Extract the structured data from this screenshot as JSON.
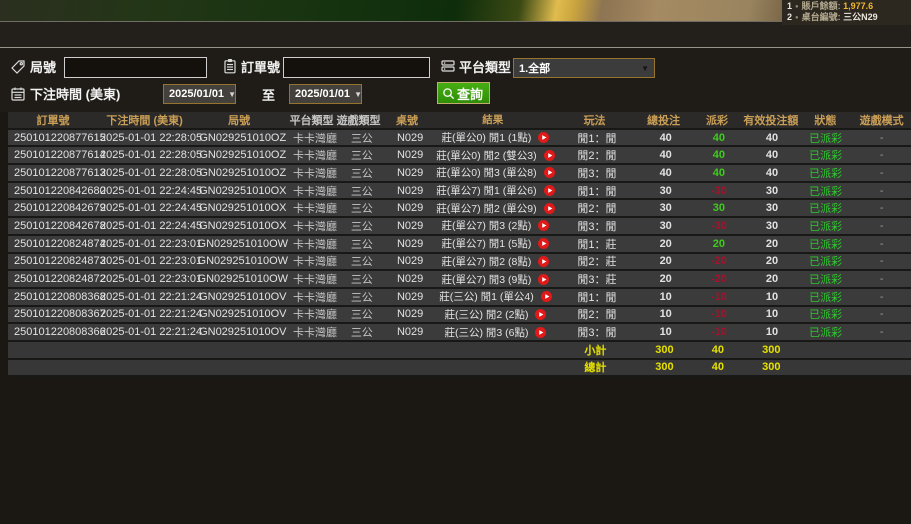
{
  "banner": {
    "lines": [
      {
        "num": "1",
        "label": "賬戶餘額:",
        "value": "1,977.6"
      },
      {
        "num": "2",
        "label": "桌台編號:",
        "value": "三公N29"
      }
    ]
  },
  "filters": {
    "round_label": "局號",
    "order_label": "訂單號",
    "platform_label": "平台類型",
    "platform_value": "1.全部",
    "time_label": "下注時間 (美東)",
    "date_from": "2025/01/01",
    "to_label": "至",
    "date_to": "2025/01/01",
    "search_label": "查詢",
    "round_value": "",
    "order_value": ""
  },
  "table": {
    "headers": [
      "訂單號",
      "下注時間 (美東)",
      "局號",
      "平台類型",
      "遊戲類型",
      "桌號",
      "結果",
      "玩法",
      "總投注",
      "派彩",
      "有效投注額",
      "狀態",
      "遊戲模式"
    ],
    "column_keys": [
      "order-no",
      "bet-time",
      "round-no",
      "platform",
      "game-type",
      "table-no",
      "result",
      "play-type",
      "total-bet",
      "payout",
      "valid-bet",
      "status",
      "game-mode"
    ],
    "rows": [
      [
        "250101220877615",
        "2025-01-01 22:28:05",
        "GN029251010OZ",
        "卡卡灣廳",
        "三公",
        "N029",
        "莊(單公0) 閒1 (1點)",
        "閒1：閒",
        "40",
        "40",
        "40",
        "已派彩",
        "-"
      ],
      [
        "250101220877614",
        "2025-01-01 22:28:05",
        "GN029251010OZ",
        "卡卡灣廳",
        "三公",
        "N029",
        "莊(單公0) 閒2 (雙公3)",
        "閒2：閒",
        "40",
        "40",
        "40",
        "已派彩",
        "-"
      ],
      [
        "250101220877613",
        "2025-01-01 22:28:05",
        "GN029251010OZ",
        "卡卡灣廳",
        "三公",
        "N029",
        "莊(單公0) 閒3 (單公8)",
        "閒3：閒",
        "40",
        "40",
        "40",
        "已派彩",
        "-"
      ],
      [
        "250101220842680",
        "2025-01-01 22:24:45",
        "GN029251010OX",
        "卡卡灣廳",
        "三公",
        "N029",
        "莊(單公7) 閒1 (單公6)",
        "閒1：閒",
        "30",
        "-30",
        "30",
        "已派彩",
        "-"
      ],
      [
        "250101220842679",
        "2025-01-01 22:24:45",
        "GN029251010OX",
        "卡卡灣廳",
        "三公",
        "N029",
        "莊(單公7) 閒2 (單公9)",
        "閒2：閒",
        "30",
        "30",
        "30",
        "已派彩",
        "-"
      ],
      [
        "250101220842678",
        "2025-01-01 22:24:45",
        "GN029251010OX",
        "卡卡灣廳",
        "三公",
        "N029",
        "莊(單公7) 閒3 (2點)",
        "閒3：閒",
        "30",
        "-30",
        "30",
        "已派彩",
        "-"
      ],
      [
        "250101220824874",
        "2025-01-01 22:23:01",
        "GN029251010OW",
        "卡卡灣廳",
        "三公",
        "N029",
        "莊(單公7) 閒1 (5點)",
        "閒1：莊",
        "20",
        "20",
        "20",
        "已派彩",
        "-"
      ],
      [
        "250101220824873",
        "2025-01-01 22:23:01",
        "GN029251010OW",
        "卡卡灣廳",
        "三公",
        "N029",
        "莊(單公7) 閒2 (8點)",
        "閒2：莊",
        "20",
        "-20",
        "20",
        "已派彩",
        "-"
      ],
      [
        "250101220824872",
        "2025-01-01 22:23:01",
        "GN029251010OW",
        "卡卡灣廳",
        "三公",
        "N029",
        "莊(單公7) 閒3 (9點)",
        "閒3：莊",
        "20",
        "-20",
        "20",
        "已派彩",
        "-"
      ],
      [
        "250101220808368",
        "2025-01-01 22:21:24",
        "GN029251010OV",
        "卡卡灣廳",
        "三公",
        "N029",
        "莊(三公) 閒1 (單公4)",
        "閒1：閒",
        "10",
        "-10",
        "10",
        "已派彩",
        "-"
      ],
      [
        "250101220808367",
        "2025-01-01 22:21:24",
        "GN029251010OV",
        "卡卡灣廳",
        "三公",
        "N029",
        "莊(三公) 閒2 (2點)",
        "閒2：閒",
        "10",
        "-10",
        "10",
        "已派彩",
        "-"
      ],
      [
        "250101220808366",
        "2025-01-01 22:21:24",
        "GN029251010OV",
        "卡卡灣廳",
        "三公",
        "N029",
        "莊(三公) 閒3 (6點)",
        "閒3：閒",
        "10",
        "-10",
        "10",
        "已派彩",
        "-"
      ]
    ],
    "subtotal": {
      "label": "小計",
      "total_bet": "300",
      "payout": "40",
      "valid_bet": "300"
    },
    "grand_total": {
      "label": "總計",
      "total_bet": "300",
      "payout": "40",
      "valid_bet": "300"
    }
  },
  "colors": {
    "positive": "#3ecc1a",
    "negative": "#a8102c",
    "paid_status": "#2ec82e",
    "totals_yellow": "#e6e000",
    "header_gold": "#c99e56",
    "button_green": "#37a00e",
    "field_border_brown": "#96742e",
    "balance_yellow": "#f2b52e"
  }
}
